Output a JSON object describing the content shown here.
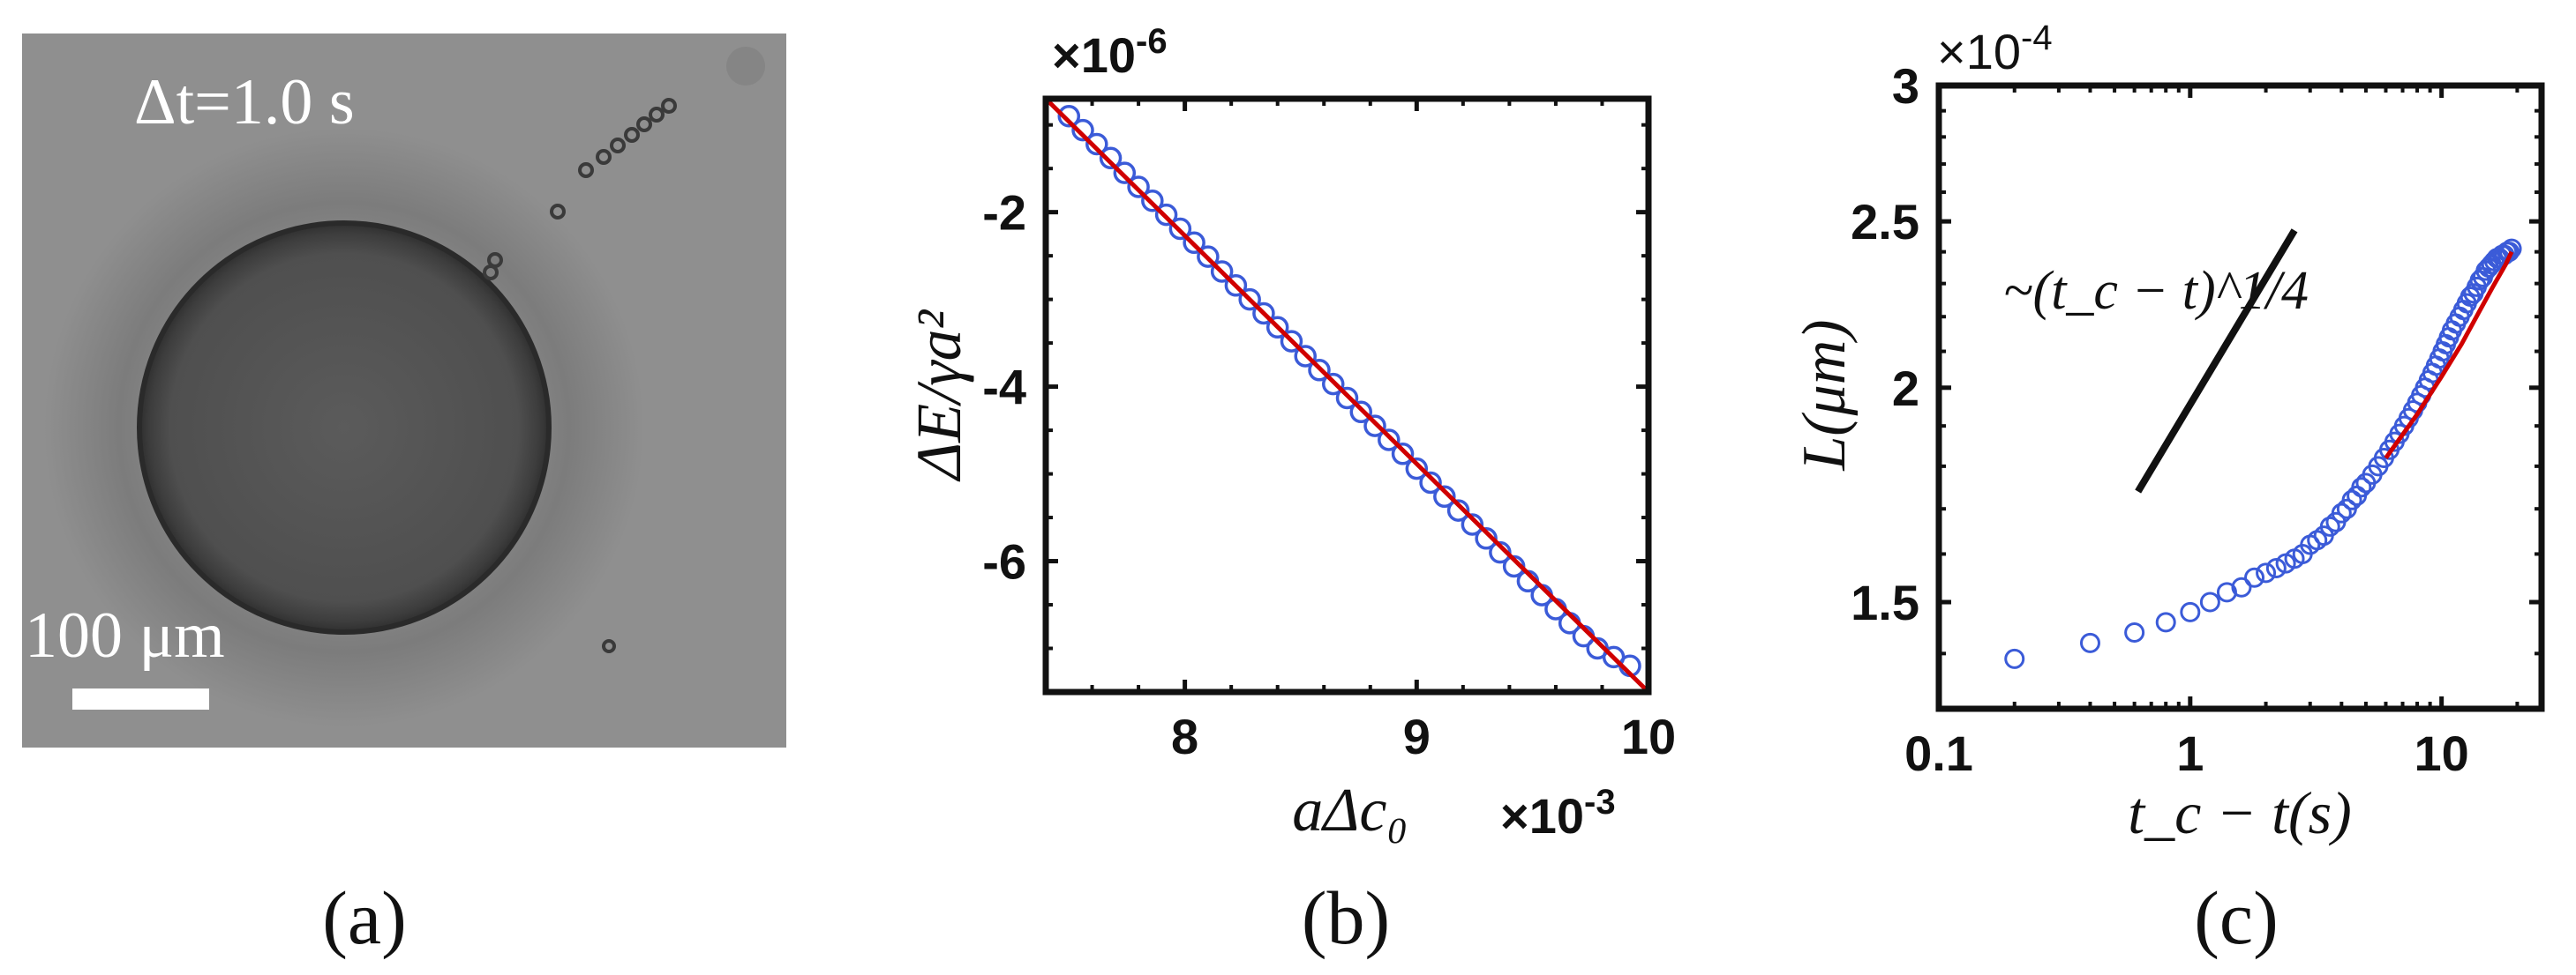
{
  "figure": {
    "panel_a": {
      "caption": "(a)",
      "time_label": "Δt=1.0 s",
      "scalebar_label": "100 μm",
      "colors": {
        "background": "#8f8f8f",
        "droplet": "#4e4e4e",
        "scalebar": "#ffffff"
      }
    },
    "panel_b": {
      "caption": "(b)"
    },
    "panel_c": {
      "caption": "(c)"
    }
  },
  "chart_data": [
    {
      "type": "scatter",
      "panel": "b",
      "ylabel": "ΔE/γa²",
      "xlabel": "aΔc₀",
      "x_exponent_label": "×10",
      "x_exponent_power": "-3",
      "y_exponent_label": "×10",
      "y_exponent_power": "-6",
      "xlim": [
        7.4,
        10.0
      ],
      "ylim": [
        -7.5,
        -0.7
      ],
      "xticks": [
        8,
        9,
        10
      ],
      "xtick_labels": [
        "8",
        "9",
        "10"
      ],
      "yticks": [
        -2,
        -4,
        -6
      ],
      "ytick_labels": [
        "-2",
        "-4",
        "-6"
      ],
      "grid": false,
      "marker_color": "#3b5bd8",
      "fit_color": "#d00000",
      "series": [
        {
          "kind": "markers",
          "x": [
            7.5,
            7.56,
            7.62,
            7.68,
            7.74,
            7.8,
            7.86,
            7.92,
            7.98,
            8.04,
            8.1,
            8.16,
            8.22,
            8.28,
            8.34,
            8.4,
            8.46,
            8.52,
            8.58,
            8.64,
            8.7,
            8.76,
            8.82,
            8.88,
            8.94,
            9.0,
            9.06,
            9.12,
            9.18,
            9.24,
            9.3,
            9.36,
            9.42,
            9.48,
            9.54,
            9.6,
            9.66,
            9.72,
            9.78,
            9.85,
            9.92
          ],
          "y": [
            -0.9,
            -1.06,
            -1.22,
            -1.38,
            -1.55,
            -1.71,
            -1.87,
            -2.03,
            -2.19,
            -2.35,
            -2.51,
            -2.68,
            -2.84,
            -3.0,
            -3.16,
            -3.32,
            -3.48,
            -3.65,
            -3.81,
            -3.97,
            -4.13,
            -4.29,
            -4.45,
            -4.61,
            -4.77,
            -4.94,
            -5.1,
            -5.26,
            -5.42,
            -5.58,
            -5.74,
            -5.9,
            -6.06,
            -6.23,
            -6.39,
            -6.55,
            -6.71,
            -6.86,
            -7.0,
            -7.1,
            -7.2
          ]
        },
        {
          "kind": "line",
          "x": [
            7.4,
            10.0
          ],
          "y": [
            -0.7,
            -7.5
          ]
        }
      ]
    },
    {
      "type": "scatter",
      "panel": "c",
      "ylabel": "L(μm)",
      "xlabel": "t_c − t(s)",
      "y_exponent_label": "×10",
      "y_exponent_power": "-4",
      "xscale": "log",
      "yscale": "log",
      "xlim": [
        0.1,
        25
      ],
      "ylim": [
        1.3,
        3.0
      ],
      "xticks": [
        0.1,
        1,
        10
      ],
      "xtick_labels": [
        "0.1",
        "1",
        "10"
      ],
      "yticks": [
        1.5,
        2,
        2.5,
        3
      ],
      "ytick_labels": [
        "1.5",
        "2",
        "2.5",
        "3"
      ],
      "grid": false,
      "marker_color": "#3b5bd8",
      "fit_color": "#d00000",
      "annotation": "~(t_c − t)^1/4",
      "series": [
        {
          "kind": "markers",
          "x": [
            0.2,
            0.4,
            0.6,
            0.8,
            1.0,
            1.2,
            1.4,
            1.6,
            1.8,
            2.0,
            2.2,
            2.4,
            2.6,
            2.8,
            3.0,
            3.2,
            3.4,
            3.6,
            3.8,
            4.0,
            4.2,
            4.4,
            4.6,
            4.8,
            5.0,
            5.3,
            5.6,
            5.9,
            6.2,
            6.5,
            6.8,
            7.1,
            7.4,
            7.7,
            8.0,
            8.3,
            8.6,
            8.9,
            9.2,
            9.5,
            9.8,
            10.1,
            10.4,
            10.7,
            11.0,
            11.4,
            11.8,
            12.2,
            12.6,
            13.0,
            13.4,
            13.8,
            14.2,
            14.6,
            15.0,
            15.4,
            15.8,
            16.2,
            16.6,
            17.0,
            17.4,
            17.8,
            18.2,
            18.6,
            19.0
          ],
          "y": [
            1.39,
            1.42,
            1.44,
            1.46,
            1.48,
            1.5,
            1.52,
            1.53,
            1.55,
            1.56,
            1.57,
            1.58,
            1.59,
            1.6,
            1.62,
            1.63,
            1.64,
            1.66,
            1.67,
            1.69,
            1.7,
            1.72,
            1.73,
            1.75,
            1.76,
            1.78,
            1.8,
            1.82,
            1.84,
            1.86,
            1.88,
            1.9,
            1.92,
            1.94,
            1.96,
            1.98,
            2.0,
            2.02,
            2.04,
            2.06,
            2.08,
            2.1,
            2.12,
            2.14,
            2.16,
            2.18,
            2.2,
            2.22,
            2.24,
            2.26,
            2.27,
            2.29,
            2.31,
            2.32,
            2.34,
            2.35,
            2.36,
            2.37,
            2.38,
            2.38,
            2.39,
            2.39,
            2.4,
            2.4,
            2.41
          ]
        },
        {
          "kind": "line",
          "x": [
            6.0,
            8.0,
            10.0,
            12.0,
            14.0,
            16.0,
            18.0,
            19.0
          ],
          "y": [
            1.82,
            1.93,
            2.03,
            2.12,
            2.21,
            2.29,
            2.36,
            2.4
          ]
        },
        {
          "kind": "reference",
          "x": [
            0.62,
            2.6
          ],
          "y": [
            1.74,
            2.47
          ]
        }
      ]
    }
  ]
}
